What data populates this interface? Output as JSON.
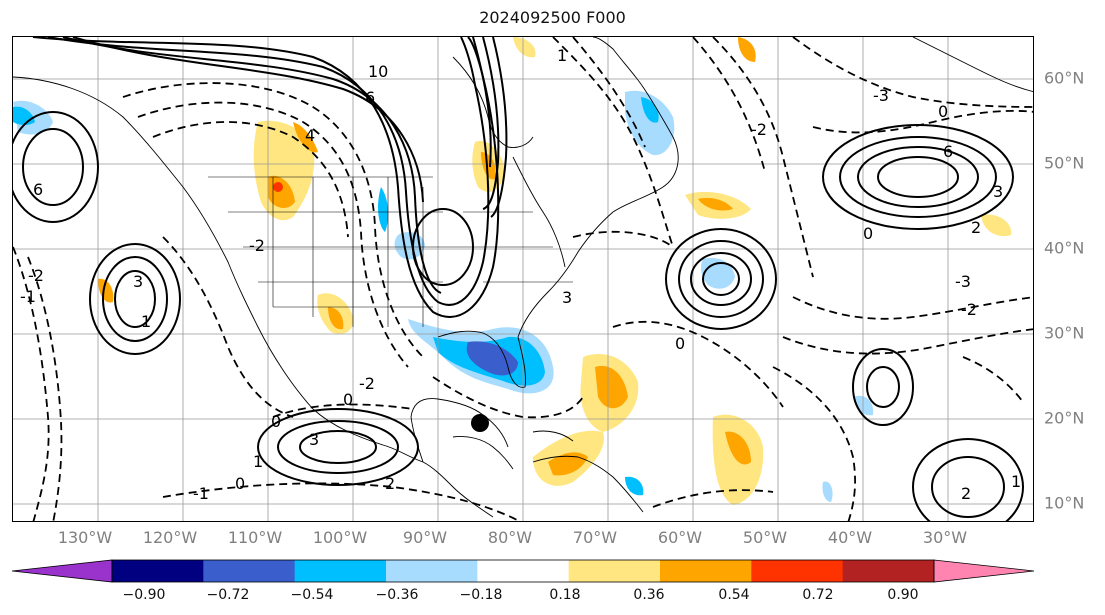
{
  "title": "2024092500 F000",
  "lon_labels": [
    "130°W",
    "120°W",
    "110°W",
    "100°W",
    "90°W",
    "80°W",
    "70°W",
    "60°W",
    "50°W",
    "40°W",
    "30°W"
  ],
  "lat_labels": [
    "60°N",
    "50°N",
    "40°N",
    "30°N",
    "20°N",
    "10°N"
  ],
  "colorbar": {
    "ticks": [
      "−0.90",
      "−0.72",
      "−0.54",
      "−0.36",
      "−0.18",
      "0.18",
      "0.36",
      "0.54",
      "0.72",
      "0.90"
    ],
    "colors": [
      "#9933cc",
      "#000080",
      "#3a5fcd",
      "#00bfff",
      "#a8dcff",
      "#ffffff",
      "#ffe680",
      "#ffa500",
      "#ff3300",
      "#b22222",
      "#ff85b0"
    ]
  },
  "contour_labels": [
    "10",
    "6",
    "4",
    "6",
    "-2",
    "-3",
    "0",
    "6",
    "3",
    "2",
    "0",
    "-1",
    "-2",
    "3",
    "1",
    "0",
    "-3",
    "-2",
    "0",
    "2",
    "1",
    "-1",
    "-2",
    "3",
    "0",
    "1",
    "2",
    "-2",
    "0",
    "3",
    "1"
  ],
  "palette": {
    "neg_light": "#a8dcff",
    "neg_mid": "#00bfff",
    "neg_dark": "#3a5fcd",
    "pos_light": "#ffe680",
    "pos_mid": "#ffa500",
    "pos_dark": "#ff3300"
  }
}
